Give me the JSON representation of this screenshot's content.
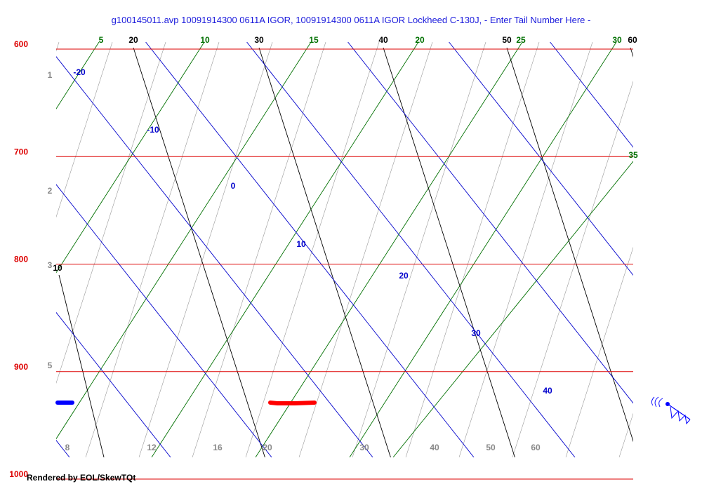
{
  "header": {
    "title": "g100145011.avp  10091914300 0611A IGOR, 10091914300 0611A IGOR Lockheed C-130J, - Enter Tail Number Here -"
  },
  "footer": {
    "text": "Rendered by EOL/SkewTQt"
  },
  "colors": {
    "isobar": "#dd0000",
    "isotherm": "#0000cc",
    "dry_adiabat": "#000000",
    "moist_adiabat": "#007000",
    "mixing_ratio": "#888888",
    "temperature_trace": "#ff0000",
    "dewpoint_trace": "#0000ff",
    "wind_barb": "#0000ff"
  },
  "chart_data": {
    "type": "skew-t",
    "pressure_range": [
      600,
      1050
    ],
    "grid": true,
    "isobars": [
      600,
      700,
      800,
      900,
      1000
    ],
    "isotherms": [
      -20,
      -10,
      0,
      10,
      20,
      30,
      40
    ],
    "dry_adiabats": [
      10,
      20,
      30,
      40,
      50,
      60
    ],
    "moist_adiabats": [
      5,
      10,
      15,
      20,
      25,
      30,
      35
    ],
    "mixing_ratio_labels": [
      "8",
      "12",
      "16",
      "20",
      "30",
      "40",
      "50",
      "60"
    ],
    "height_labels": [
      "1",
      "2",
      "3",
      "5"
    ],
    "temperature_trace": [
      {
        "p": 975,
        "t": 22.0
      },
      {
        "p": 976,
        "t": 24.0
      },
      {
        "p": 977,
        "t": 26.0
      },
      {
        "p": 977,
        "t": 28.0
      },
      {
        "p": 977,
        "t": 29.0
      }
    ],
    "dewpoint_trace": [
      {
        "p": 975,
        "t": -32.0
      },
      {
        "p": 975,
        "t": -29.0
      }
    ],
    "wind_barb": {
      "p": 975
    }
  }
}
